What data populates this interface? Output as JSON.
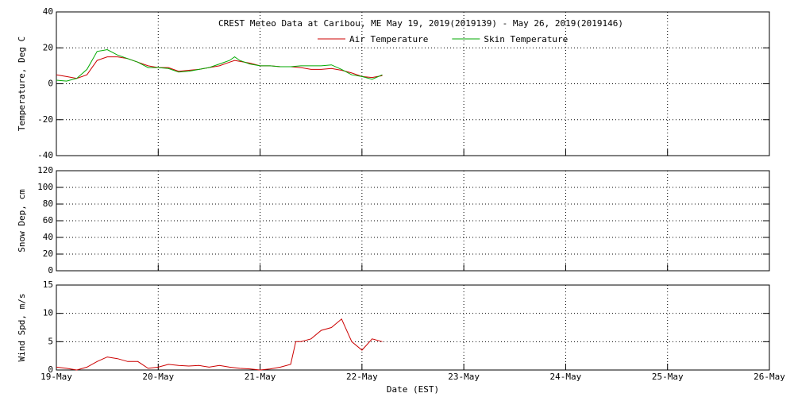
{
  "chart_data": [
    {
      "type": "line",
      "title": "CREST Meteo Data at Caribou, ME   May 19, 2019(2019139) - May 26, 2019(2019146)",
      "ylabel": "Temperature, Deg C",
      "ylim": [
        -40,
        40
      ],
      "yticks": [
        -40,
        -20,
        0,
        20,
        40
      ],
      "grid": true,
      "series": [
        {
          "name": "Air Temperature",
          "color": "#cc0000",
          "x": [
            0,
            0.1,
            0.2,
            0.3,
            0.35,
            0.4,
            0.5,
            0.6,
            0.7,
            0.8,
            0.9,
            1.0,
            1.1,
            1.2,
            1.3,
            1.4,
            1.5,
            1.6,
            1.7,
            1.75,
            1.8,
            1.9,
            2.0,
            2.1,
            2.2,
            2.3,
            2.4,
            2.5,
            2.6,
            2.7,
            2.8,
            2.9,
            3.0,
            3.1,
            3.2
          ],
          "values": [
            5,
            4,
            3,
            5,
            9,
            13,
            15,
            15,
            14,
            12,
            10,
            9,
            9,
            7,
            7.5,
            8,
            9,
            10,
            12,
            13,
            12.5,
            11.5,
            10,
            10,
            9.5,
            9.5,
            9,
            8,
            8,
            8.5,
            7.5,
            6,
            4,
            3.5,
            4.5
          ]
        },
        {
          "name": "Skin Temperature",
          "color": "#00aa00",
          "x": [
            0,
            0.1,
            0.2,
            0.3,
            0.35,
            0.4,
            0.5,
            0.6,
            0.7,
            0.8,
            0.9,
            1.0,
            1.1,
            1.2,
            1.3,
            1.4,
            1.5,
            1.6,
            1.7,
            1.75,
            1.8,
            1.9,
            2.0,
            2.1,
            2.2,
            2.3,
            2.4,
            2.5,
            2.6,
            2.7,
            2.8,
            2.9,
            3.0,
            3.1,
            3.2
          ],
          "values": [
            2,
            1.5,
            3,
            8,
            13,
            18,
            19,
            16,
            14,
            12,
            9,
            9,
            8.5,
            6.5,
            7,
            8,
            9,
            11,
            13,
            15,
            13,
            11,
            10,
            10,
            9.5,
            9.5,
            10,
            10,
            10,
            10.5,
            8,
            5,
            4,
            2.5,
            5
          ]
        }
      ]
    },
    {
      "type": "line",
      "ylabel": "Snow Dep, cm",
      "ylim": [
        0,
        120
      ],
      "yticks": [
        0,
        20,
        40,
        60,
        80,
        100,
        120
      ],
      "grid": true,
      "series": []
    },
    {
      "type": "line",
      "ylabel": "Wind Spd, m/s",
      "xlabel": "Date (EST)",
      "ylim": [
        0,
        15
      ],
      "yticks": [
        0,
        5,
        10,
        15
      ],
      "grid": true,
      "xlim": [
        0,
        7
      ],
      "xticks": [
        {
          "value": 0,
          "label": "19-May"
        },
        {
          "value": 1,
          "label": "20-May"
        },
        {
          "value": 2,
          "label": "21-May"
        },
        {
          "value": 3,
          "label": "22-May"
        },
        {
          "value": 4,
          "label": "23-May"
        },
        {
          "value": 5,
          "label": "24-May"
        },
        {
          "value": 6,
          "label": "25-May"
        },
        {
          "value": 7,
          "label": "26-May"
        }
      ],
      "series": [
        {
          "color": "#cc0000",
          "x": [
            0,
            0.1,
            0.2,
            0.3,
            0.4,
            0.5,
            0.6,
            0.7,
            0.8,
            0.9,
            1.0,
            1.1,
            1.2,
            1.3,
            1.4,
            1.5,
            1.6,
            1.7,
            1.8,
            1.9,
            2.0,
            2.1,
            2.2,
            2.3,
            2.35,
            2.4,
            2.5,
            2.6,
            2.7,
            2.8,
            2.85,
            2.9,
            3.0,
            3.1,
            3.2
          ],
          "values": [
            0.5,
            0.3,
            0,
            0.5,
            1.5,
            2.3,
            2,
            1.5,
            1.5,
            0.3,
            0.5,
            1,
            0.8,
            0.7,
            0.8,
            0.5,
            0.8,
            0.5,
            0.3,
            0.2,
            0,
            0.2,
            0.5,
            1,
            5,
            5,
            5.5,
            7,
            7.5,
            9,
            7,
            5,
            3.5,
            5.5,
            5
          ]
        }
      ]
    }
  ]
}
